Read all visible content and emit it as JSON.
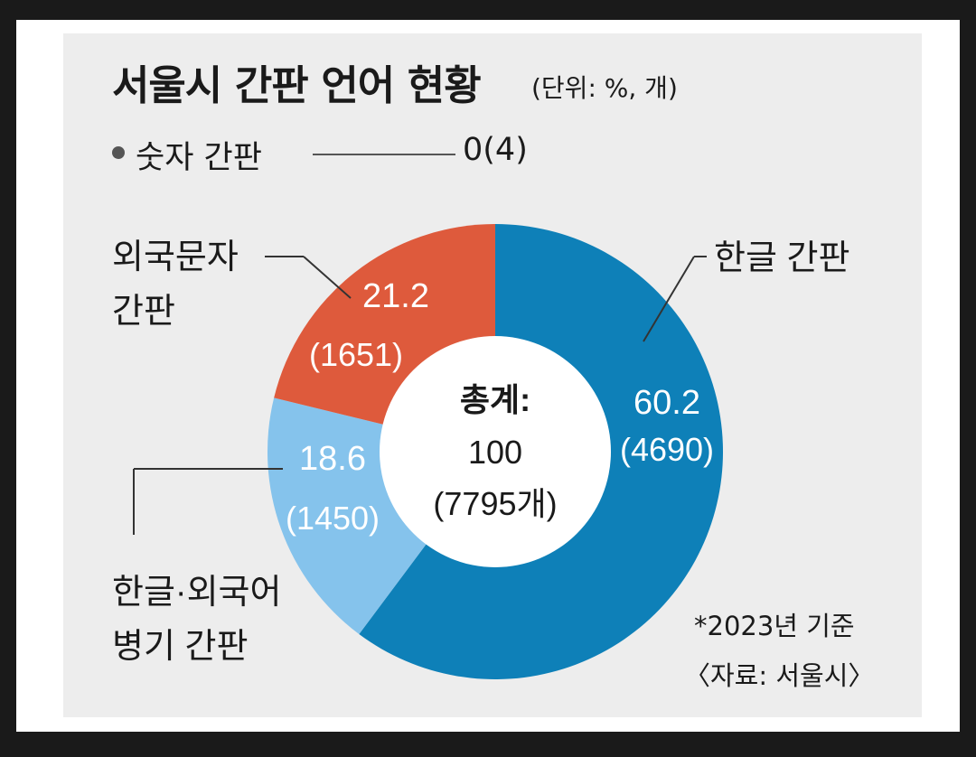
{
  "chart_data": {
    "type": "pie",
    "style": "donut",
    "title": "서울시 간판 언어 현황",
    "unit_note": "(단위: %, 개)",
    "slices": [
      {
        "label": "한글 간판",
        "percent": 60.2,
        "percent_text": "60.2",
        "count_text": "(4690)",
        "color": "#0e80b8",
        "label_color": "#1a1a1a",
        "value_color": "#ffffff"
      },
      {
        "label": "한글·외국어 병기 간판",
        "label_lines": [
          "한글·외국어",
          "병기 간판"
        ],
        "percent": 18.6,
        "percent_text": "18.6",
        "count_text": "(1450)",
        "color": "#85c3ec",
        "label_color": "#1a1a1a",
        "value_color": "#ffffff"
      },
      {
        "label": "외국문자 간판",
        "label_lines": [
          "외국문자",
          "간판"
        ],
        "percent": 21.2,
        "percent_text": "21.2",
        "count_text": "(1651)",
        "color": "#de5a3c",
        "label_color": "#1a1a1a",
        "value_color": "#ffffff"
      }
    ],
    "center": {
      "line1": "총계:",
      "line2": "100",
      "line3": "(7795개)"
    },
    "extra_note": {
      "label": "숫자 간판",
      "value": "0(4)",
      "dot_color": "#555555"
    },
    "footnote": "*2023년 기준",
    "source": "〈자료: 서울시〉"
  }
}
